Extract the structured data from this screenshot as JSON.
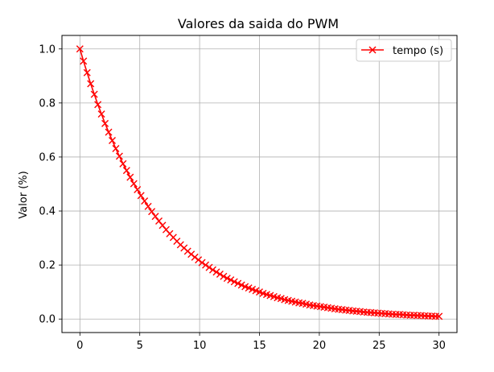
{
  "chart_data": {
    "type": "line",
    "title": "Valores da saida do PWM",
    "xlabel": "",
    "ylabel": "Valor (%)",
    "xlim": [
      -1.5,
      31.5
    ],
    "ylim": [
      -0.05,
      1.05
    ],
    "xticks": [
      0,
      5,
      10,
      15,
      20,
      25,
      30
    ],
    "yticks": [
      0.0,
      0.2,
      0.4,
      0.6,
      0.8,
      1.0
    ],
    "xtick_labels": [
      "0",
      "5",
      "10",
      "15",
      "20",
      "25",
      "30"
    ],
    "ytick_labels": [
      "0.0",
      "0.2",
      "0.4",
      "0.6",
      "0.8",
      "1.0"
    ],
    "grid": true,
    "legend": {
      "position": "top-right"
    },
    "series": [
      {
        "name": "tempo (s)",
        "color": "#ff0000",
        "marker": "x",
        "x": [
          0,
          0.3,
          0.6,
          0.9,
          1.2,
          1.5,
          1.8,
          2.1,
          2.4,
          2.7,
          3.0,
          3.3,
          3.6,
          3.9,
          4.2,
          4.5,
          4.8,
          5.1,
          5.4,
          5.7,
          6.0,
          6.3,
          6.6,
          6.9,
          7.2,
          7.5,
          7.8,
          8.1,
          8.4,
          8.7,
          9.0,
          9.3,
          9.6,
          9.9,
          10.2,
          10.5,
          10.8,
          11.1,
          11.4,
          11.7,
          12.0,
          12.3,
          12.6,
          12.9,
          13.2,
          13.5,
          13.8,
          14.1,
          14.4,
          14.7,
          15.0,
          15.3,
          15.6,
          15.9,
          16.2,
          16.5,
          16.8,
          17.1,
          17.4,
          17.7,
          18.0,
          18.3,
          18.6,
          18.9,
          19.2,
          19.5,
          19.8,
          20.1,
          20.4,
          20.7,
          21.0,
          21.3,
          21.6,
          21.9,
          22.2,
          22.5,
          22.8,
          23.1,
          23.4,
          23.7,
          24.0,
          24.3,
          24.6,
          24.9,
          25.2,
          25.5,
          25.8,
          26.1,
          26.4,
          26.7,
          27.0,
          27.3,
          27.6,
          27.9,
          28.2,
          28.5,
          28.8,
          29.1,
          29.4,
          29.7,
          30.0
        ],
        "y": [
          1.0,
          0.955,
          0.912,
          0.871,
          0.832,
          0.794,
          0.759,
          0.724,
          0.692,
          0.661,
          0.631,
          0.603,
          0.575,
          0.55,
          0.525,
          0.501,
          0.479,
          0.457,
          0.437,
          0.417,
          0.398,
          0.38,
          0.363,
          0.347,
          0.331,
          0.316,
          0.302,
          0.288,
          0.275,
          0.263,
          0.251,
          0.24,
          0.229,
          0.219,
          0.209,
          0.2,
          0.191,
          0.182,
          0.174,
          0.166,
          0.158,
          0.151,
          0.145,
          0.138,
          0.132,
          0.126,
          0.12,
          0.115,
          0.11,
          0.105,
          0.1,
          0.095,
          0.091,
          0.087,
          0.083,
          0.079,
          0.076,
          0.072,
          0.069,
          0.066,
          0.063,
          0.06,
          0.058,
          0.055,
          0.052,
          0.05,
          0.048,
          0.046,
          0.044,
          0.042,
          0.04,
          0.038,
          0.036,
          0.035,
          0.033,
          0.032,
          0.03,
          0.029,
          0.028,
          0.026,
          0.025,
          0.024,
          0.023,
          0.022,
          0.021,
          0.02,
          0.019,
          0.018,
          0.017,
          0.017,
          0.016,
          0.015,
          0.014,
          0.014,
          0.013,
          0.013,
          0.012,
          0.011,
          0.011,
          0.01,
          0.01
        ]
      }
    ]
  }
}
